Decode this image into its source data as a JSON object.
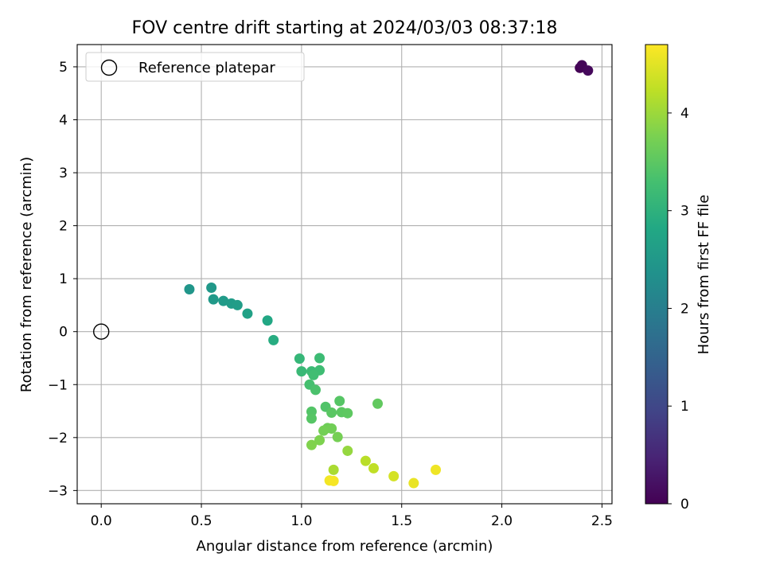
{
  "chart_data": {
    "type": "scatter",
    "title": "FOV centre drift starting at 2024/03/03 08:37:18",
    "xlabel": "Angular distance from reference (arcmin)",
    "ylabel": "Rotation from reference (arcmin)",
    "xlim": [
      -0.12,
      2.55
    ],
    "ylim": [
      -3.25,
      5.42
    ],
    "xticks": [
      0.0,
      0.5,
      1.0,
      1.5,
      2.0,
      2.5
    ],
    "xtick_labels": [
      "0.0",
      "0.5",
      "1.0",
      "1.5",
      "2.0",
      "2.5"
    ],
    "yticks": [
      -3,
      -2,
      -1,
      0,
      1,
      2,
      3,
      4,
      5
    ],
    "ytick_labels": [
      "−3",
      "−2",
      "−1",
      "0",
      "1",
      "2",
      "3",
      "4",
      "5"
    ],
    "grid": true,
    "legend": {
      "position": "top-left",
      "entries": [
        "Reference platepar"
      ]
    },
    "reference_point": {
      "name": "Reference platepar",
      "x": 0.0,
      "y": 0.0
    },
    "colorbar": {
      "label": "Hours from first FF file",
      "range": [
        0,
        4.7
      ],
      "ticks": [
        0,
        1,
        2,
        3,
        4
      ],
      "tick_labels": [
        "0",
        "1",
        "2",
        "3",
        "4"
      ],
      "colormap": "viridis"
    },
    "series": [
      {
        "points": [
          {
            "x": 2.39,
            "y": 4.98,
            "hours": 0.02
          },
          {
            "x": 2.4,
            "y": 5.03,
            "hours": 0.05
          },
          {
            "x": 2.43,
            "y": 4.93,
            "hours": 0.1
          },
          {
            "x": 0.44,
            "y": 0.8,
            "hours": 2.45
          },
          {
            "x": 0.55,
            "y": 0.83,
            "hours": 2.5
          },
          {
            "x": 0.56,
            "y": 0.61,
            "hours": 2.52
          },
          {
            "x": 0.61,
            "y": 0.58,
            "hours": 2.55
          },
          {
            "x": 0.65,
            "y": 0.53,
            "hours": 2.58
          },
          {
            "x": 0.68,
            "y": 0.5,
            "hours": 2.6
          },
          {
            "x": 0.73,
            "y": 0.34,
            "hours": 2.68
          },
          {
            "x": 0.83,
            "y": 0.21,
            "hours": 2.8
          },
          {
            "x": 0.86,
            "y": -0.16,
            "hours": 2.9
          },
          {
            "x": 0.99,
            "y": -0.51,
            "hours": 3.1
          },
          {
            "x": 1.0,
            "y": -0.75,
            "hours": 3.15
          },
          {
            "x": 1.05,
            "y": -0.75,
            "hours": 3.18
          },
          {
            "x": 1.09,
            "y": -0.5,
            "hours": 3.2
          },
          {
            "x": 1.09,
            "y": -0.73,
            "hours": 3.22
          },
          {
            "x": 1.06,
            "y": -0.82,
            "hours": 3.25
          },
          {
            "x": 1.04,
            "y": -1.0,
            "hours": 3.3
          },
          {
            "x": 1.07,
            "y": -1.1,
            "hours": 3.35
          },
          {
            "x": 1.12,
            "y": -1.42,
            "hours": 3.4
          },
          {
            "x": 1.19,
            "y": -1.31,
            "hours": 3.45
          },
          {
            "x": 1.15,
            "y": -1.53,
            "hours": 3.48
          },
          {
            "x": 1.2,
            "y": -1.52,
            "hours": 3.5
          },
          {
            "x": 1.23,
            "y": -1.54,
            "hours": 3.52
          },
          {
            "x": 1.38,
            "y": -1.36,
            "hours": 3.55
          },
          {
            "x": 1.05,
            "y": -1.51,
            "hours": 3.42
          },
          {
            "x": 1.05,
            "y": -1.64,
            "hours": 3.45
          },
          {
            "x": 1.13,
            "y": -1.82,
            "hours": 3.65
          },
          {
            "x": 1.15,
            "y": -1.83,
            "hours": 3.68
          },
          {
            "x": 1.11,
            "y": -1.87,
            "hours": 3.7
          },
          {
            "x": 1.18,
            "y": -1.99,
            "hours": 3.72
          },
          {
            "x": 1.09,
            "y": -2.05,
            "hours": 3.78
          },
          {
            "x": 1.05,
            "y": -2.14,
            "hours": 3.8
          },
          {
            "x": 1.23,
            "y": -2.25,
            "hours": 3.95
          },
          {
            "x": 1.32,
            "y": -2.44,
            "hours": 4.2
          },
          {
            "x": 1.36,
            "y": -2.58,
            "hours": 4.25
          },
          {
            "x": 1.16,
            "y": -2.61,
            "hours": 4.1
          },
          {
            "x": 1.46,
            "y": -2.73,
            "hours": 4.4
          },
          {
            "x": 1.56,
            "y": -2.86,
            "hours": 4.55
          },
          {
            "x": 1.67,
            "y": -2.61,
            "hours": 4.6
          },
          {
            "x": 1.14,
            "y": -2.81,
            "hours": 4.62
          },
          {
            "x": 1.16,
            "y": -2.82,
            "hours": 4.65
          }
        ]
      }
    ]
  }
}
